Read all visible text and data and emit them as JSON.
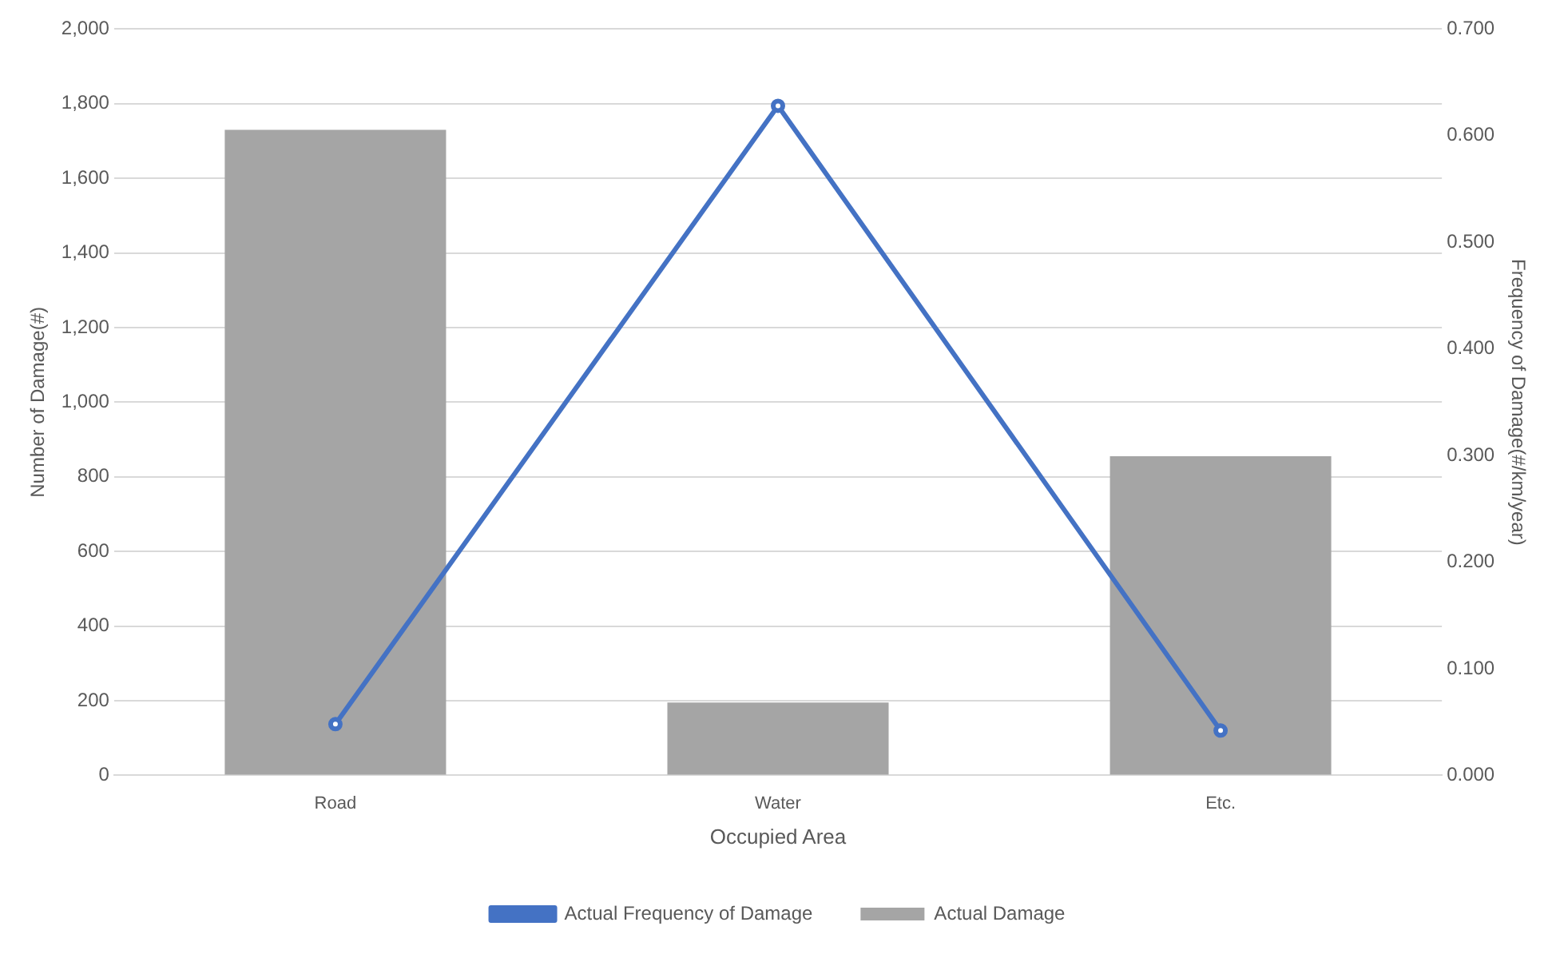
{
  "chart_data": {
    "type": "bar",
    "xlabel": "Occupied Area",
    "ylabel": "Number of Damage(#)",
    "y2label": "Frequency of Damage(#/km/year)",
    "categories": [
      "Road",
      "Water",
      "Etc."
    ],
    "series": [
      {
        "name": "Actual Damage",
        "color": "#a5a5a5",
        "values": [
          1730,
          195,
          855
        ]
      },
      {
        "name": "Actual Frequency of Damage",
        "type": "line",
        "axis": "y2",
        "color": "#4472c4",
        "values": [
          0.048,
          0.628,
          0.042
        ]
      }
    ],
    "ylim": [
      0,
      2000
    ],
    "yticks": [
      {
        "value": 0,
        "label": "0"
      },
      {
        "value": 200,
        "label": "200"
      },
      {
        "value": 400,
        "label": "400"
      },
      {
        "value": 600,
        "label": "600"
      },
      {
        "value": 800,
        "label": "800"
      },
      {
        "value": 1000,
        "label": "1,000"
      },
      {
        "value": 1200,
        "label": "1,200"
      },
      {
        "value": 1400,
        "label": "1,400"
      },
      {
        "value": 1600,
        "label": "1,600"
      },
      {
        "value": 1800,
        "label": "1,800"
      },
      {
        "value": 2000,
        "label": "2,000"
      }
    ],
    "y2lim": [
      0,
      0.7
    ],
    "y2ticks": [
      {
        "value": 0,
        "label": "0.000"
      },
      {
        "value": 0.1,
        "label": "0.100"
      },
      {
        "value": 0.2,
        "label": "0.200"
      },
      {
        "value": 0.3,
        "label": "0.300"
      },
      {
        "value": 0.4,
        "label": "0.400"
      },
      {
        "value": 0.5,
        "label": "0.500"
      },
      {
        "value": 0.6,
        "label": "0.600"
      },
      {
        "value": 0.7,
        "label": "0.700"
      }
    ],
    "grid": "y",
    "legend": "bottom",
    "marker": "circle"
  }
}
